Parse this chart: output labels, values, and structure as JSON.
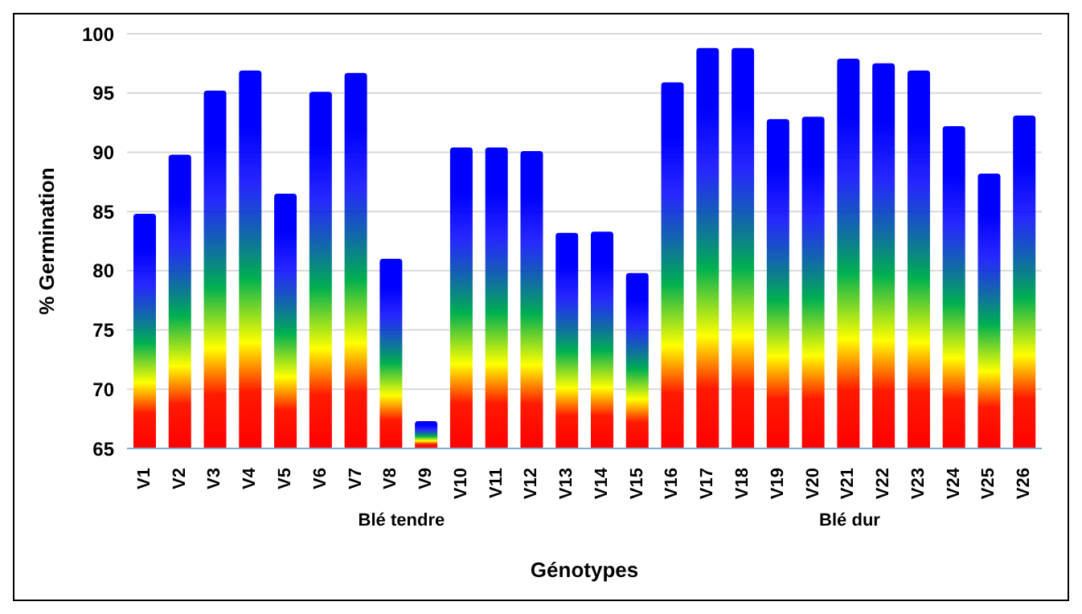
{
  "chart_data": {
    "type": "bar",
    "xlabel": "Génotypes",
    "ylabel": "% Germination",
    "categories": [
      "V1",
      "V2",
      "V3",
      "V4",
      "V5",
      "V6",
      "V7",
      "V8",
      "V9",
      "V10",
      "V11",
      "V12",
      "V13",
      "V14",
      "V15",
      "V16",
      "V17",
      "V18",
      "V19",
      "V20",
      "V21",
      "V22",
      "V23",
      "V24",
      "V25",
      "V26"
    ],
    "values": [
      84.8,
      89.8,
      95.2,
      96.9,
      86.5,
      95.1,
      96.7,
      81,
      67.3,
      90.4,
      90.4,
      90.1,
      83.2,
      83.3,
      79.8,
      95.9,
      98.8,
      98.8,
      92.8,
      93,
      97.9,
      97.5,
      96.9,
      92.2,
      88.2,
      93.1
    ],
    "color": "#0000ff",
    "ylim": [
      65,
      100
    ],
    "yticks": [
      65,
      70,
      75,
      80,
      85,
      90,
      95,
      100
    ],
    "grid": "y",
    "annotations": [
      "Blé tendre",
      "Blé dur"
    ]
  }
}
